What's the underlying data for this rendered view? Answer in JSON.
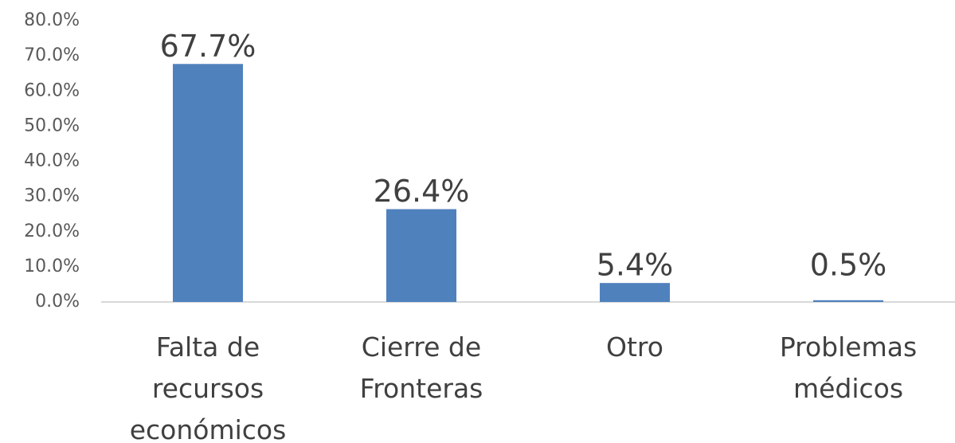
{
  "chart_data": {
    "type": "bar",
    "categories": [
      "Falta de recursos económicos",
      "Cierre de Fronteras",
      "Otro",
      "Problemas médicos"
    ],
    "values": [
      67.7,
      26.4,
      5.4,
      0.5
    ],
    "value_labels": [
      "67.7%",
      "26.4%",
      "5.4%",
      "0.5%"
    ],
    "color": "#4f81bd",
    "ylim": [
      0,
      80
    ],
    "yticks": [
      {
        "value": 0,
        "label": "0.0%"
      },
      {
        "value": 10,
        "label": "10.0%"
      },
      {
        "value": 20,
        "label": "20.0%"
      },
      {
        "value": 30,
        "label": "30.0%"
      },
      {
        "value": 40,
        "label": "40.0%"
      },
      {
        "value": 50,
        "label": "50.0%"
      },
      {
        "value": 60,
        "label": "60.0%"
      },
      {
        "value": 70,
        "label": "70.0%"
      },
      {
        "value": 80,
        "label": "80.0%"
      }
    ],
    "grid": false
  }
}
